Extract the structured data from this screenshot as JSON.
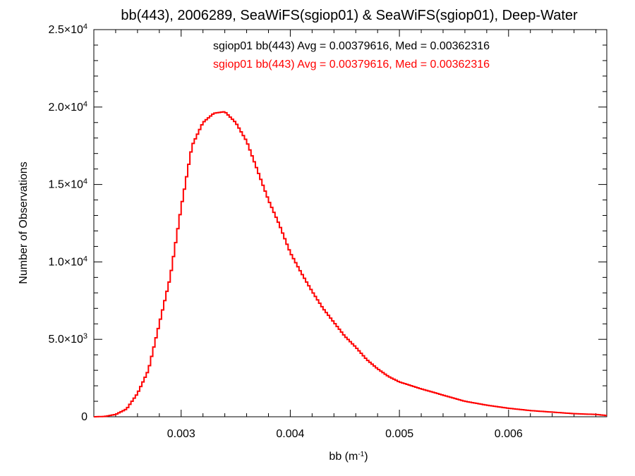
{
  "chart_data": {
    "type": "histogram",
    "title": "bb(443), 2006289, SeaWiFS(sgiop01) & SeaWiFS(sgiop01), Deep-Water",
    "xlabel": "bb (m",
    "xlabel_superscript": "-1",
    "xlabel_suffix": ")",
    "ylabel": "Number of Observations",
    "xlim": [
      0.0022,
      0.0069
    ],
    "ylim": [
      0,
      25000
    ],
    "xticks": [
      {
        "value": 0.003,
        "label": "0.003"
      },
      {
        "value": 0.004,
        "label": "0.004"
      },
      {
        "value": 0.005,
        "label": "0.005"
      },
      {
        "value": 0.006,
        "label": "0.006"
      }
    ],
    "yticks": [
      {
        "value": 0,
        "label": "0",
        "exp": ""
      },
      {
        "value": 5000,
        "label": "5.0×10",
        "exp": "3"
      },
      {
        "value": 10000,
        "label": "1.0×10",
        "exp": "4"
      },
      {
        "value": 15000,
        "label": "1.5×10",
        "exp": "4"
      },
      {
        "value": 20000,
        "label": "2.0×10",
        "exp": "4"
      },
      {
        "value": 25000,
        "label": "2.5×10",
        "exp": "4"
      }
    ],
    "annotations": [
      {
        "text": "sgiop01 bb(443) Avg = 0.00379616, Med = 0.00362316",
        "color": "#000000"
      },
      {
        "text": "sgiop01 bb(443) Avg = 0.00379616, Med = 0.00362316",
        "color": "#ff0000"
      }
    ],
    "series": [
      {
        "color": "#ff0000",
        "x": [
          0.0022,
          0.0023,
          0.0024,
          0.0025,
          0.0026,
          0.0027,
          0.0028,
          0.0029,
          0.003,
          0.0031,
          0.0032,
          0.0033,
          0.0034,
          0.0035,
          0.0036,
          0.0037,
          0.0038,
          0.0039,
          0.004,
          0.0041,
          0.0042,
          0.0043,
          0.0044,
          0.0045,
          0.0046,
          0.0047,
          0.0048,
          0.0049,
          0.005,
          0.0052,
          0.0054,
          0.0056,
          0.0058,
          0.006,
          0.0062,
          0.0064,
          0.0066,
          0.0068,
          0.0069
        ],
        "y": [
          0,
          20,
          150,
          500,
          1500,
          3000,
          6000,
          9000,
          13500,
          17500,
          19000,
          19600,
          19700,
          19000,
          17800,
          15900,
          14000,
          12400,
          10600,
          9300,
          8100,
          7000,
          6100,
          5200,
          4500,
          3700,
          3100,
          2600,
          2250,
          1800,
          1400,
          1000,
          750,
          550,
          400,
          300,
          200,
          150,
          80
        ]
      }
    ]
  }
}
